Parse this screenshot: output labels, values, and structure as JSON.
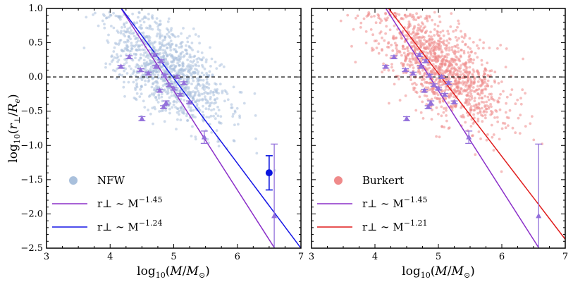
{
  "chart_data": [
    {
      "type": "scatter",
      "panel": "left",
      "xlabel": "log10(M/M⊙)",
      "ylabel": "log10(r⊥/Re)",
      "xlim": [
        3,
        7
      ],
      "ylim": [
        -2.5,
        1.0
      ],
      "xticks": [
        "3",
        "4",
        "5",
        "6",
        "7"
      ],
      "yticks": [
        "1.0",
        "0.5",
        "0.0",
        "−0.5",
        "−1.0",
        "−1.5",
        "−2.0",
        "−2.5"
      ],
      "reference_line_y": 0.0,
      "scatter_cloud": {
        "name": "NFW",
        "color": "#a9c0dc",
        "center_x": 4.9,
        "center_y": 0.1,
        "spread_x": 0.45,
        "spread_y": 0.32,
        "count": 1100,
        "seed": 7
      },
      "fits": [
        {
          "name": "r⊥ ∼ M^−1.45",
          "slope": -1.45,
          "intercept": 7.05,
          "color": "#8b2fc9"
        },
        {
          "name": "r⊥ ∼ M^−1.24",
          "slope": -1.24,
          "intercept": 6.18,
          "color": "#1515e6"
        }
      ],
      "observations": {
        "color": "#9370db",
        "points": [
          [
            4.17,
            0.15,
            0.02
          ],
          [
            4.3,
            0.29,
            0.02
          ],
          [
            4.48,
            0.1,
            0.02
          ],
          [
            4.5,
            -0.61,
            0.03
          ],
          [
            4.6,
            0.05,
            0.02
          ],
          [
            4.7,
            0.32,
            0.02
          ],
          [
            4.72,
            0.15,
            0.02
          ],
          [
            4.78,
            -0.2,
            0.02
          ],
          [
            4.8,
            0.23,
            0.02
          ],
          [
            4.84,
            -0.44,
            0.02
          ],
          [
            4.86,
            0.02,
            0.02
          ],
          [
            4.88,
            -0.38,
            0.03
          ],
          [
            4.93,
            -0.12,
            0.02
          ],
          [
            5.0,
            -0.17,
            0.02
          ],
          [
            5.05,
            0.0,
            0.02
          ],
          [
            5.1,
            -0.26,
            0.02
          ],
          [
            5.16,
            -0.09,
            0.02
          ],
          [
            5.25,
            -0.37,
            0.02
          ],
          [
            5.48,
            -0.88,
            0.09
          ],
          [
            6.58,
            -2.03,
            1.05
          ]
        ]
      },
      "highlight_point": {
        "x": 6.5,
        "y": -1.4,
        "err": 0.25,
        "color": "#0a14e0"
      },
      "legend": {
        "scatter_label": "NFW",
        "fit_labels": [
          "r⊥ ∼ M−1.45",
          "r⊥ ∼ M−1.24"
        ],
        "placement": "lower-left"
      }
    },
    {
      "type": "scatter",
      "panel": "right",
      "xlabel": "log10(M/M⊙)",
      "ylabel": "",
      "xlim": [
        3,
        7
      ],
      "ylim": [
        -2.5,
        1.0
      ],
      "xticks": [
        "3",
        "4",
        "5",
        "6",
        "7"
      ],
      "yticks": [],
      "reference_line_y": 0.0,
      "scatter_cloud": {
        "name": "Burkert",
        "color": "#ef8a8a",
        "center_x": 5.05,
        "center_y": 0.12,
        "spread_x": 0.5,
        "spread_y": 0.33,
        "count": 1200,
        "seed": 23
      },
      "fits": [
        {
          "name": "r⊥ ∼ M^−1.45",
          "slope": -1.45,
          "intercept": 7.05,
          "color": "#8b2fc9"
        },
        {
          "name": "r⊥ ∼ M^−1.21",
          "slope": -1.21,
          "intercept": 6.1,
          "color": "#e01c1c"
        }
      ],
      "observations": {
        "color": "#9370db",
        "points": [
          [
            4.17,
            0.15,
            0.02
          ],
          [
            4.3,
            0.29,
            0.02
          ],
          [
            4.48,
            0.1,
            0.02
          ],
          [
            4.5,
            -0.61,
            0.03
          ],
          [
            4.6,
            0.05,
            0.02
          ],
          [
            4.7,
            0.32,
            0.02
          ],
          [
            4.72,
            0.15,
            0.02
          ],
          [
            4.78,
            -0.2,
            0.02
          ],
          [
            4.8,
            0.23,
            0.02
          ],
          [
            4.84,
            -0.44,
            0.02
          ],
          [
            4.86,
            0.02,
            0.02
          ],
          [
            4.88,
            -0.38,
            0.03
          ],
          [
            4.93,
            -0.12,
            0.02
          ],
          [
            5.0,
            -0.17,
            0.02
          ],
          [
            5.05,
            0.0,
            0.02
          ],
          [
            5.1,
            -0.26,
            0.02
          ],
          [
            5.16,
            -0.09,
            0.02
          ],
          [
            5.25,
            -0.37,
            0.02
          ],
          [
            5.48,
            -0.88,
            0.09
          ],
          [
            6.58,
            -2.03,
            1.05
          ]
        ]
      },
      "highlight_point": null,
      "legend": {
        "scatter_label": "Burkert",
        "fit_labels": [
          "r⊥ ∼ M−1.45",
          "r⊥ ∼ M−1.21"
        ],
        "placement": "lower-left"
      }
    }
  ]
}
